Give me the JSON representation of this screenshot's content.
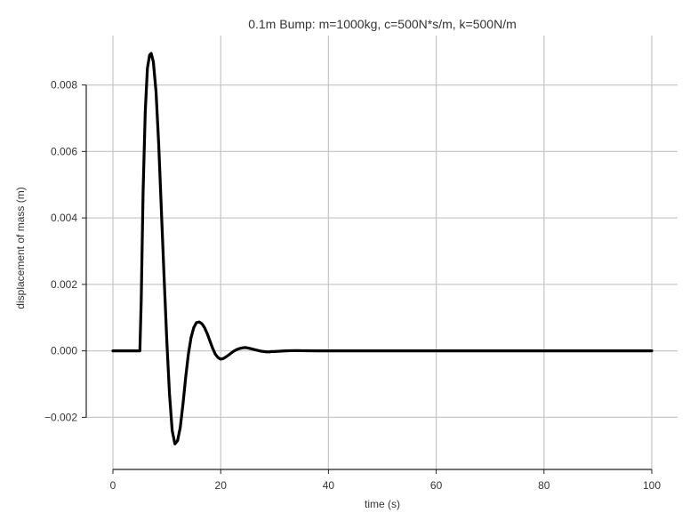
{
  "chart_data": {
    "type": "line",
    "title": "0.1m Bump: m=1000kg, c=500N*s/m, k=500N/m",
    "xlabel": "time (s)",
    "ylabel": "displacement of mass (m)",
    "xlim": [
      0,
      100
    ],
    "ylim": [
      -0.0033,
      0.0093
    ],
    "xticks": [
      0,
      20,
      40,
      60,
      80,
      100
    ],
    "xtick_labels": [
      "0",
      "20",
      "40",
      "60",
      "80",
      "100"
    ],
    "yticks": [
      -0.002,
      0.0,
      0.002,
      0.004,
      0.006,
      0.008
    ],
    "ytick_labels": [
      "−0.002",
      "0.000",
      "0.002",
      "0.004",
      "0.006",
      "0.008"
    ],
    "grid": true,
    "legend": "none",
    "line_color": "#000000",
    "series": [
      {
        "x": [
          0,
          5.0,
          5.25,
          5.6,
          6.0,
          6.4,
          6.8,
          7.1,
          7.5,
          8.0,
          8.5,
          9.0,
          9.5,
          10.0,
          10.5,
          11.0,
          11.5,
          12.0,
          12.5,
          13.0,
          13.5,
          14.0,
          14.5,
          15.0,
          15.5,
          16.0,
          16.5,
          17.0,
          17.5,
          18.0,
          18.5,
          19.0,
          19.5,
          20.0,
          20.5,
          21.0,
          21.5,
          22.0,
          22.5,
          23.0,
          23.5,
          24.0,
          24.5,
          25.0,
          25.5,
          26.0,
          26.5,
          27.0,
          27.5,
          28.0,
          28.5,
          29.0,
          29.5,
          30.0,
          31.0,
          32.0,
          33.0,
          34.0,
          35.0,
          36.0,
          38.0,
          40.0,
          45.0,
          50.0,
          60.0,
          70.0,
          80.0,
          90.0,
          100.0
        ],
        "y": [
          0.0,
          0.0,
          0.0015,
          0.0048,
          0.0072,
          0.0085,
          0.0089,
          0.00895,
          0.0087,
          0.0078,
          0.0062,
          0.0042,
          0.0022,
          0.0003,
          -0.0013,
          -0.0024,
          -0.0028,
          -0.0027,
          -0.0023,
          -0.0016,
          -0.0008,
          -0.0001,
          0.0004,
          0.0007,
          0.00085,
          0.00087,
          0.00082,
          0.0007,
          0.00052,
          0.0003,
          8e-05,
          -0.0001,
          -0.0002,
          -0.00025,
          -0.00023,
          -0.00018,
          -0.00012,
          -6e-05,
          0.0,
          4e-05,
          7e-05,
          9e-05,
          0.0001,
          9e-05,
          7e-05,
          5e-05,
          3e-05,
          1e-05,
          -1e-05,
          -2e-05,
          -3e-05,
          -3e-05,
          -2e-05,
          -2e-05,
          -1e-05,
          0.0,
          5e-06,
          8e-06,
          6e-06,
          3e-06,
          0.0,
          0.0,
          0.0,
          0.0,
          0.0,
          0.0,
          0.0,
          0.0,
          0.0
        ]
      }
    ]
  }
}
